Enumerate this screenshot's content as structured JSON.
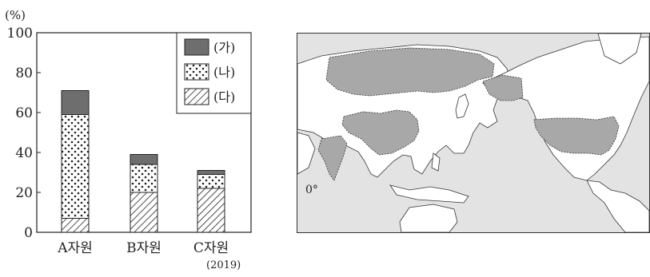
{
  "chart_data": {
    "type": "bar",
    "stacked": true,
    "unit_label": "(%)",
    "year_label": "(2019)",
    "categories": [
      "A자원",
      "B자원",
      "C자원"
    ],
    "series": [
      {
        "name": "(다)",
        "values": [
          7,
          20,
          22
        ],
        "pattern": "hatch"
      },
      {
        "name": "(나)",
        "values": [
          52,
          14,
          7
        ],
        "pattern": "dots"
      },
      {
        "name": "(가)",
        "values": [
          12,
          5,
          2
        ],
        "pattern": "solid"
      }
    ],
    "ylim": [
      0,
      100
    ],
    "yticks": [
      0,
      20,
      40,
      60,
      80,
      100
    ],
    "legend_position": "top-right",
    "colors": {
      "solid": "#6e6e6e",
      "outline": "#222222"
    }
  },
  "map": {
    "equator_label": "0°",
    "colors": {
      "ocean": "#e3e3e3",
      "land": "#ffffff",
      "highlight": "#a8a8a8"
    },
    "highlighted_countries": [
      "china",
      "india",
      "russia",
      "usa"
    ]
  }
}
